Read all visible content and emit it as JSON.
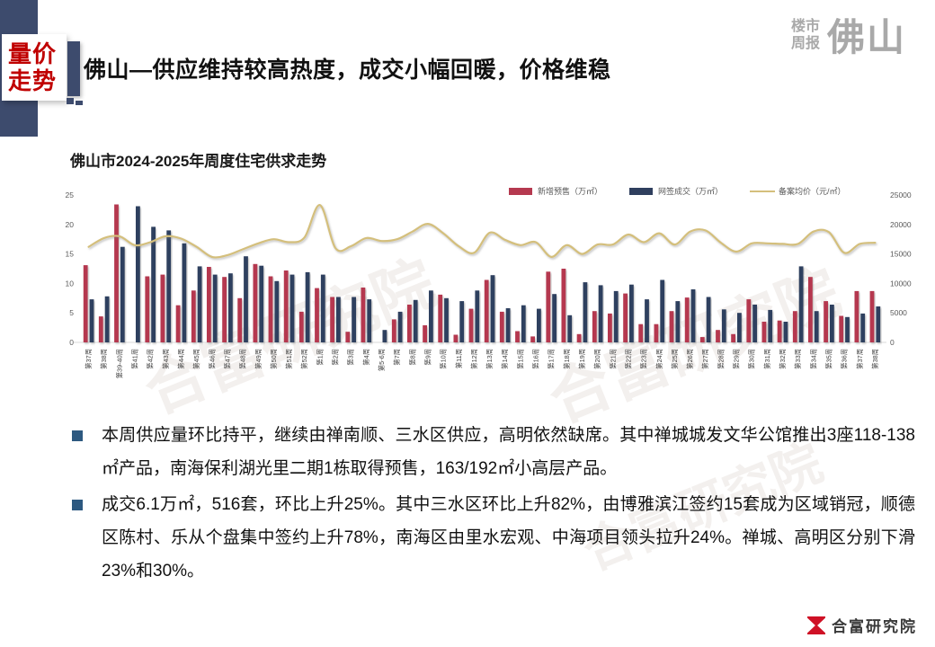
{
  "header": {
    "badge": {
      "line1": "量价",
      "line2": "走势"
    },
    "title": "佛山—供应维持较高热度，成交小幅回暖，价格维稳",
    "brand_small_1": "楼市",
    "brand_small_2": "周报",
    "brand_large": "佛山"
  },
  "chart": {
    "title": "佛山市2024-2025年周度住宅供求走势"
  },
  "chart_data": {
    "type": "bar",
    "title": "佛山市2024-2025年周度住宅供求走势",
    "grid": false,
    "legend_position": "top",
    "categories": [
      "第37周",
      "第38周",
      "第39-40周",
      "第41周",
      "第42周",
      "第43周",
      "第44周",
      "第45周",
      "第46周",
      "第47周",
      "第48周",
      "第49周",
      "第50周",
      "第51周",
      "第52周",
      "第1周",
      "第2周",
      "第3周",
      "第4周",
      "第5-6周",
      "第7周",
      "第8周",
      "第9周",
      "第10周",
      "第11周",
      "第12周",
      "第13周",
      "第14周",
      "第15周",
      "第16周",
      "第17周",
      "第18周",
      "第19周",
      "第20周",
      "第21周",
      "第22周",
      "第23周",
      "第24周",
      "第25周",
      "第26周",
      "第27周",
      "第28周",
      "第29周",
      "第30周",
      "第31周",
      "第32周",
      "第33周",
      "第34周",
      "第35周",
      "第36周",
      "第37周",
      "第38周"
    ],
    "left_axis": {
      "min": 0,
      "max": 25,
      "ticks": [
        0,
        5,
        10,
        15,
        20,
        25
      ]
    },
    "right_axis": {
      "min": 0,
      "max": 25000,
      "ticks": [
        0,
        5000,
        10000,
        15000,
        20000,
        25000
      ]
    },
    "series": [
      {
        "name": "新增预售（万㎡）",
        "type": "bar",
        "axis": "left",
        "color": "#b5394f",
        "values": [
          13.1,
          4.4,
          23.4,
          0,
          11.2,
          11.5,
          6.3,
          8.8,
          12.8,
          11.1,
          7.5,
          13.3,
          11.2,
          12.2,
          5.2,
          9.2,
          7.7,
          1.8,
          9.3,
          0,
          3.9,
          6.4,
          2.9,
          8.1,
          1.3,
          5.7,
          10.6,
          5.2,
          1.9,
          1.0,
          12.0,
          12.5,
          1.4,
          5.3,
          4.9,
          8.3,
          3.1,
          3.1,
          5.3,
          7.6,
          0.9,
          2.1,
          1.4,
          7.3,
          3.5,
          3.7,
          5.3,
          11.1,
          7.0,
          4.5,
          8.7,
          8.7
        ]
      },
      {
        "name": "网签成交（万㎡）",
        "type": "bar",
        "axis": "left",
        "color": "#2f3f5e",
        "values": [
          7.3,
          7.8,
          16.2,
          23.1,
          19.6,
          19.0,
          16.8,
          12.9,
          11.5,
          11.7,
          14.6,
          13.0,
          10.4,
          11.5,
          11.9,
          11.5,
          7.7,
          7.7,
          7.3,
          2.1,
          5.2,
          7.2,
          8.8,
          7.5,
          7.0,
          8.8,
          11.4,
          5.8,
          6.3,
          5.7,
          8.2,
          4.6,
          10.2,
          9.7,
          8.7,
          9.8,
          7.3,
          10.6,
          7.0,
          9.0,
          7.7,
          5.6,
          5.0,
          6.4,
          5.5,
          3.5,
          12.9,
          5.3,
          6.4,
          4.3,
          4.9,
          6.1
        ]
      },
      {
        "name": "备案均价（元/㎡）",
        "type": "line",
        "axis": "right",
        "color": "#d4bf7c",
        "values": [
          16200,
          17700,
          18000,
          16500,
          17000,
          18000,
          17600,
          16200,
          14500,
          14800,
          15800,
          16800,
          17500,
          17000,
          17800,
          23300,
          16000,
          16300,
          17700,
          17200,
          17500,
          18800,
          20100,
          18500,
          16300,
          15200,
          18600,
          17400,
          16500,
          17000,
          14500,
          16500,
          15000,
          16600,
          16600,
          18300,
          17000,
          18500,
          16600,
          18800,
          19000,
          16900,
          15400,
          16800,
          16800,
          16700,
          16700,
          18800,
          18700,
          15200,
          16700,
          16900
        ]
      }
    ]
  },
  "bullets": {
    "item1": "本周供应量环比持平，继续由禅南顺、三水区供应，高明依然缺席。其中禅城城发文华公馆推出3座118-138㎡产品，南海保利湖光里二期1栋取得预售，163/192㎡小高层产品。",
    "item2": "成交6.1万㎡，516套，环比上升25%。其中三水区环比上升82%，由博雅滨江签约15套成为区域销冠，顺德区陈村、乐从个盘集中签约上升78%，南海区由里水宏观、中海项目领头拉升24%。禅城、高明区分别下滑23%和30%。"
  },
  "footer": {
    "logo_text": "合富研究院"
  },
  "watermark_text": "合富研究院",
  "colors": {
    "bar_supply_red": "#b5394f",
    "bar_signed_navy": "#2f3f5e",
    "price_line_gold": "#d4bf7c",
    "header_navy": "#3d4b6d",
    "badge_red": "#c00000",
    "bullet_navy": "#2d5980",
    "brand_gray": "#a9a9a9",
    "logo_red": "#cf1126"
  }
}
